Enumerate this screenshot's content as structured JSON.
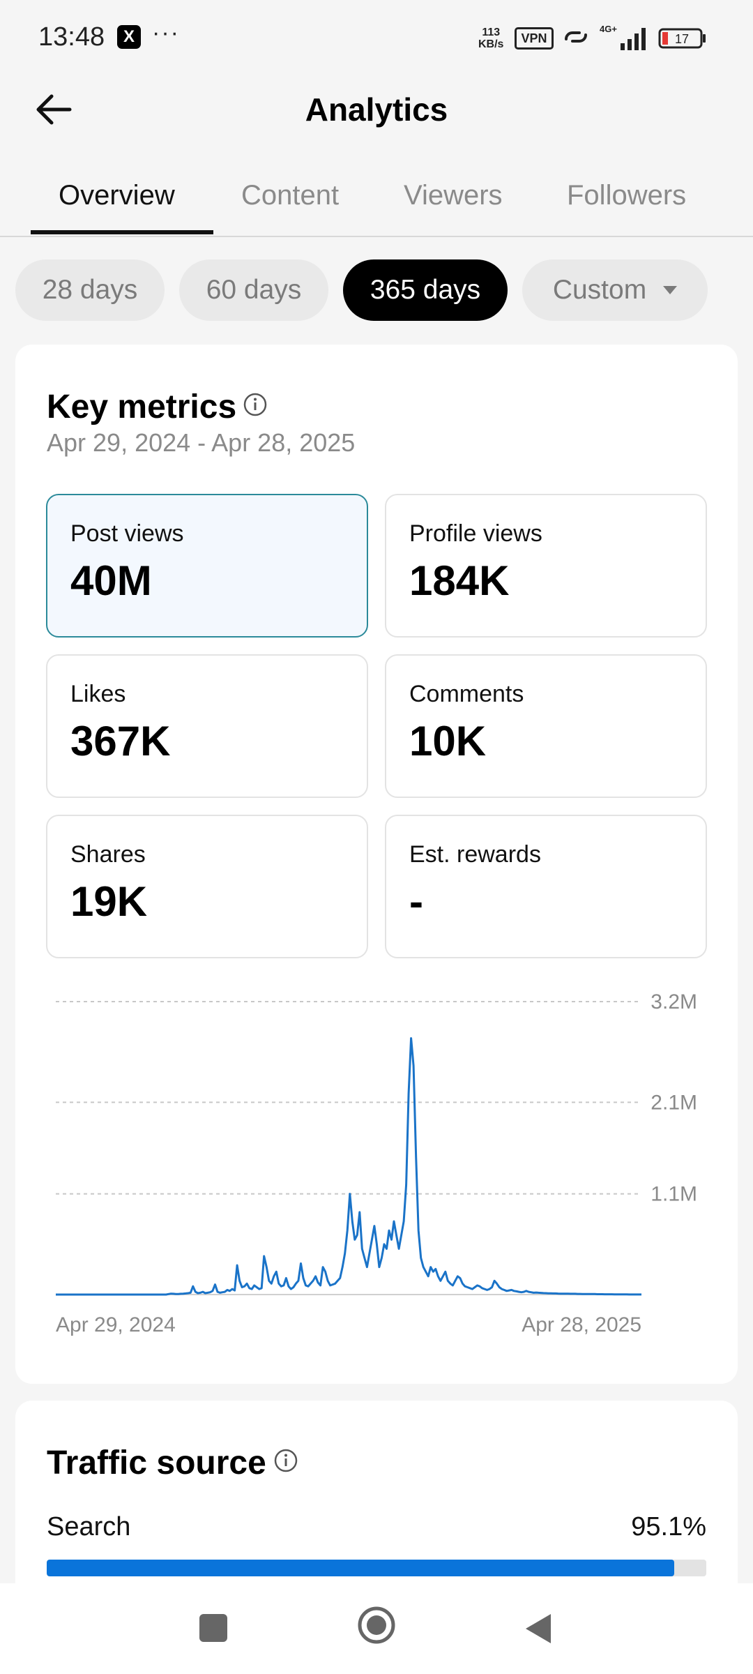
{
  "status_bar": {
    "time": "13:48",
    "app_badge": "X",
    "dots": "···",
    "net_speed_value": "113",
    "net_speed_unit": "KB/s",
    "vpn": "VPN",
    "network": "4G+",
    "battery": "17"
  },
  "header": {
    "title": "Analytics"
  },
  "tabs": [
    {
      "label": "Overview",
      "active": true
    },
    {
      "label": "Content",
      "active": false
    },
    {
      "label": "Viewers",
      "active": false
    },
    {
      "label": "Followers",
      "active": false
    }
  ],
  "chips": [
    {
      "label": "28 days"
    },
    {
      "label": "60 days"
    },
    {
      "label": "365 days",
      "active": true
    },
    {
      "label": "Custom"
    }
  ],
  "key_metrics": {
    "title": "Key metrics",
    "date_range": "Apr 29, 2024 - Apr 28, 2025",
    "items": [
      {
        "label": "Post views",
        "value": "40M"
      },
      {
        "label": "Profile views",
        "value": "184K"
      },
      {
        "label": "Likes",
        "value": "367K"
      },
      {
        "label": "Comments",
        "value": "10K"
      },
      {
        "label": "Shares",
        "value": "19K"
      },
      {
        "label": "Est. rewards",
        "value": "-"
      }
    ]
  },
  "chart_data": {
    "type": "line",
    "x_start_label": "Apr 29, 2024",
    "x_end_label": "Apr 28, 2025",
    "y_tick_labels": [
      "3.2M",
      "2.1M",
      "1.1M"
    ],
    "y_ticks": [
      3200000,
      2100000,
      1100000
    ],
    "ylim": [
      0,
      3200000
    ],
    "grid": true,
    "color": "#1a73c8",
    "series": [
      {
        "values": [
          0,
          0,
          0,
          0,
          0,
          0,
          0,
          0,
          0,
          0,
          0,
          0,
          0,
          0,
          0,
          0,
          0,
          0,
          0,
          0,
          0,
          0,
          0,
          0,
          0,
          0,
          0,
          0,
          0,
          0,
          0,
          0,
          0,
          0,
          0,
          0,
          0,
          0,
          0,
          0,
          0,
          0,
          0,
          0,
          0,
          0,
          5000,
          10000,
          8000,
          5000,
          6000,
          8000,
          10000,
          12000,
          15000,
          20000,
          90000,
          30000,
          15000,
          20000,
          30000,
          15000,
          20000,
          25000,
          40000,
          110000,
          30000,
          20000,
          25000,
          30000,
          50000,
          40000,
          60000,
          45000,
          320000,
          150000,
          80000,
          90000,
          120000,
          70000,
          60000,
          100000,
          80000,
          60000,
          70000,
          420000,
          300000,
          150000,
          120000,
          200000,
          250000,
          120000,
          90000,
          100000,
          180000,
          90000,
          60000,
          80000,
          120000,
          150000,
          340000,
          180000,
          100000,
          90000,
          120000,
          150000,
          200000,
          130000,
          100000,
          300000,
          250000,
          150000,
          100000,
          110000,
          120000,
          150000,
          180000,
          300000,
          450000,
          700000,
          1100000,
          800000,
          600000,
          650000,
          900000,
          500000,
          400000,
          300000,
          450000,
          600000,
          750000,
          550000,
          300000,
          400000,
          550000,
          500000,
          700000,
          600000,
          800000,
          650000,
          500000,
          650000,
          800000,
          1200000,
          2200000,
          2800000,
          2500000,
          1500000,
          700000,
          400000,
          300000,
          250000,
          200000,
          300000,
          250000,
          280000,
          200000,
          150000,
          200000,
          250000,
          150000,
          120000,
          100000,
          150000,
          200000,
          180000,
          120000,
          90000,
          80000,
          70000,
          60000,
          80000,
          100000,
          90000,
          70000,
          60000,
          50000,
          60000,
          80000,
          150000,
          120000,
          80000,
          60000,
          50000,
          40000,
          45000,
          50000,
          40000,
          35000,
          30000,
          25000,
          30000,
          40000,
          30000,
          25000,
          20000,
          22000,
          20000,
          18000,
          16000,
          15000,
          14000,
          13000,
          12000,
          12000,
          11000,
          10000,
          10000,
          9000,
          9000,
          8000,
          8000,
          8000,
          7000,
          7000,
          6000,
          6000,
          6000,
          5000,
          5000,
          5000,
          4000,
          4000,
          4000,
          3000,
          3000,
          3000,
          3000,
          2000,
          2000,
          2000,
          2000,
          2000,
          2000,
          1000,
          1000,
          1000,
          1000,
          1000,
          1000
        ]
      }
    ]
  },
  "traffic_source": {
    "title": "Traffic source",
    "rows": [
      {
        "label": "Search",
        "value": "95.1%",
        "fraction": 0.951
      }
    ]
  }
}
